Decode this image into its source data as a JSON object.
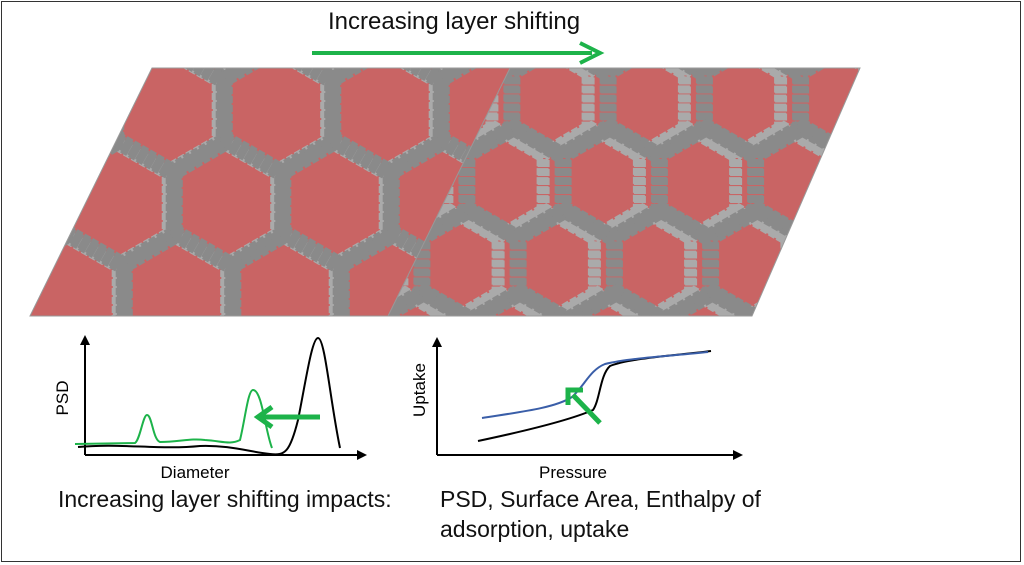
{
  "header": {
    "title": "Increasing layer shifting"
  },
  "structures": [
    {
      "label": "",
      "shift": "low"
    },
    {
      "label": "",
      "shift": "high"
    }
  ],
  "colors": {
    "arrow": "#1db34a",
    "pore": "#c96464",
    "framework": "#8a8a8a",
    "nitrogen": "#9a9ad8",
    "blue_curve": "#3a5ea8"
  },
  "psd_plot": {
    "ylabel": "PSD",
    "xlabel": "Diameter"
  },
  "uptake_plot": {
    "ylabel": "Uptake",
    "xlabel": "Pressure"
  },
  "footer": {
    "lead": "Increasing layer shifting impacts:",
    "line1": "PSD, Surface Area, Enthalpy of",
    "line2": "adsorption, uptake"
  }
}
